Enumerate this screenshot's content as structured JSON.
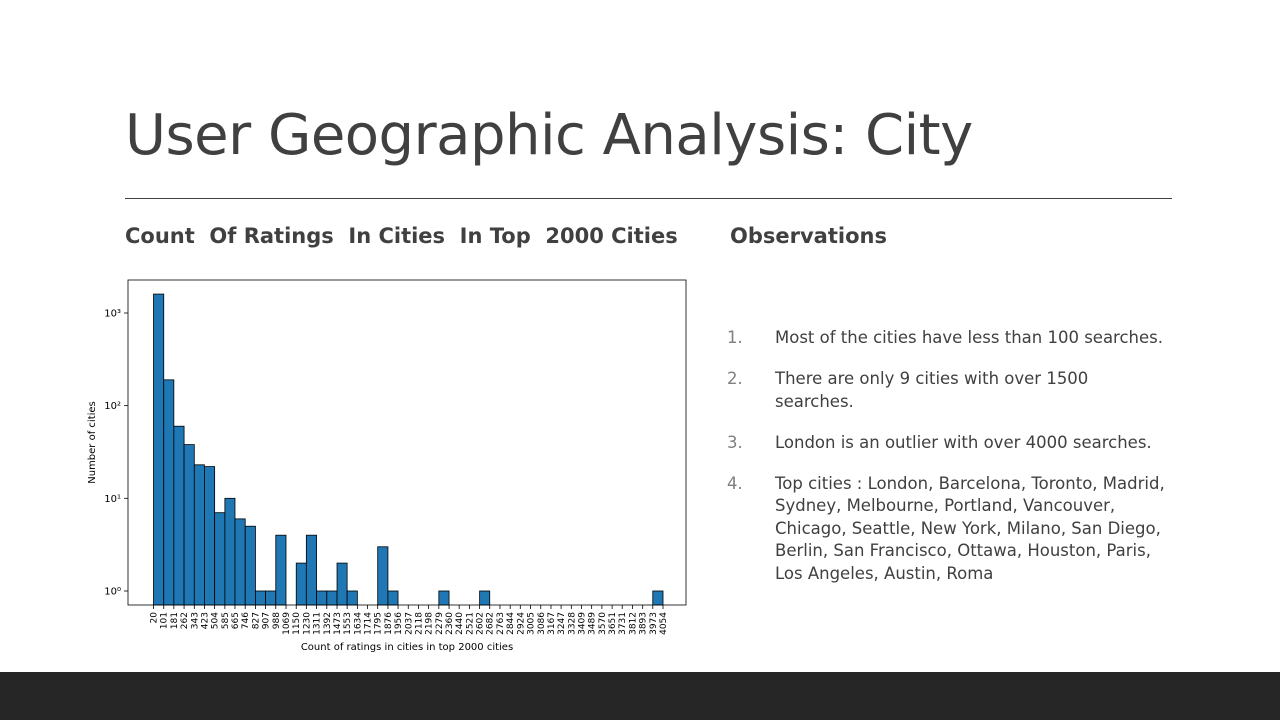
{
  "slide": {
    "title": "User Geographic Analysis: City",
    "left_heading": "Count  Of Ratings  In Cities  In Top  2000 Cities",
    "right_heading": "Observations",
    "observations": [
      {
        "number": "1.",
        "text": "Most of the cities have less than 100 searches."
      },
      {
        "number": "2.",
        "text": "There are only 9 cities with over 1500 searches."
      },
      {
        "number": "3.",
        "text": "London is an outlier with over 4000 searches."
      },
      {
        "number": "4.",
        "text": "Top cities : London, Barcelona, Toronto, Madrid, Sydney, Melbourne, Portland, Vancouver, Chicago, Seattle, New York, Milano, San Diego, Berlin, San Francisco, Ottawa, Houston, Paris, Los Angeles, Austin, Roma"
      }
    ]
  },
  "chart_data": {
    "type": "histogram",
    "x_label": "Count of ratings in cities in top 2000 cities",
    "y_label": "Number of cities",
    "bins": [
      20,
      101,
      181,
      262,
      343,
      423,
      504,
      585,
      665,
      746,
      827,
      907,
      988,
      1069,
      1150,
      1230,
      1311,
      1392,
      1473,
      1553,
      1634,
      1714,
      1795,
      1876,
      1956,
      2037,
      2118,
      2198,
      2279,
      2360,
      2440,
      2521,
      2602,
      2682,
      2763,
      2844,
      2924,
      3005,
      3086,
      3167,
      3247,
      3328,
      3409,
      3489,
      3570,
      3651,
      3731,
      3812,
      3893,
      3973,
      4054
    ],
    "values": [
      1600,
      190,
      60,
      38,
      23,
      22,
      7,
      10,
      6,
      5,
      1,
      1,
      4,
      0,
      2,
      4,
      1,
      1,
      2,
      1,
      0,
      0,
      3,
      1,
      0,
      0,
      0,
      0,
      1,
      0,
      0,
      0,
      1,
      0,
      0,
      0,
      0,
      0,
      0,
      0,
      0,
      0,
      0,
      0,
      0,
      0,
      0,
      0,
      0,
      1
    ],
    "color": "#1f77b4",
    "xlim": [
      -182,
      4236
    ],
    "xticks": [
      20,
      101,
      181,
      262,
      343,
      423,
      504,
      585,
      665,
      746,
      827,
      907,
      988,
      1069,
      1150,
      1230,
      1311,
      1392,
      1473,
      1553,
      1634,
      1714,
      1795,
      1876,
      1956,
      2037,
      2118,
      2198,
      2279,
      2360,
      2440,
      2521,
      2602,
      2682,
      2763,
      2844,
      2924,
      3005,
      3086,
      3167,
      3247,
      3328,
      3409,
      3489,
      3570,
      3651,
      3731,
      3812,
      3893,
      3973,
      4054
    ],
    "ylim": [
      0.706,
      2270
    ],
    "yticks": [
      {
        "value": 1,
        "label": "10⁰"
      },
      {
        "value": 10,
        "label": "10¹"
      },
      {
        "value": 100,
        "label": "10²"
      },
      {
        "value": 1000,
        "label": "10³"
      }
    ],
    "log_y": true
  }
}
